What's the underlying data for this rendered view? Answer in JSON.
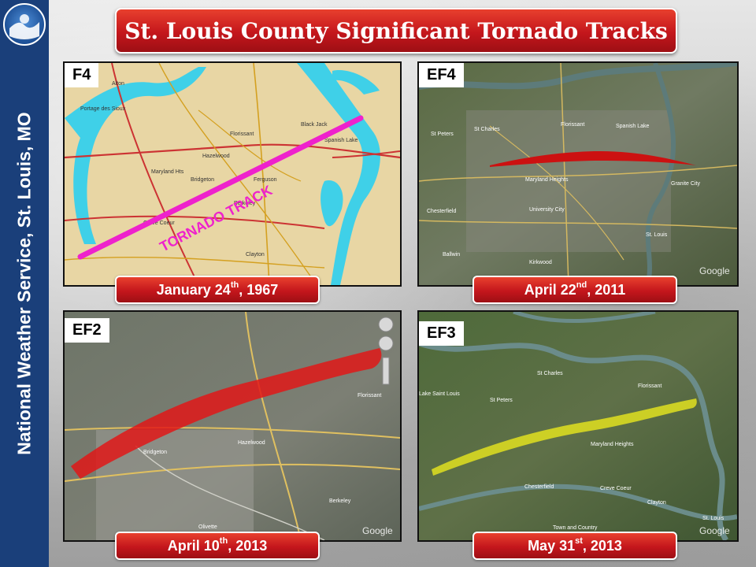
{
  "sidebar": {
    "title": "National Weather Service, St. Louis, MO",
    "logo_icon": "noaa-logo-icon",
    "color": "#1a3f7a"
  },
  "banner": {
    "title": "St. Louis County Significant Tornado Tracks"
  },
  "panels": [
    {
      "rating": "F4",
      "date_main": "January 24",
      "date_sup": "th",
      "date_year": ", 1967",
      "track_label": "TORNADO TRACK",
      "labels": [
        "Florissant",
        "Black Jack",
        "Hazelwood",
        "Ferguson",
        "Bridgeton",
        "Berkeley",
        "Maryland Heights",
        "Spanish Lake",
        "Alton",
        "Portage des Sioux",
        "Clayton",
        "Creve Coeur"
      ]
    },
    {
      "rating": "EF4",
      "date_main": "April 22",
      "date_sup": "nd",
      "date_year": ", 2011",
      "labels": [
        "St Charles",
        "St Peters",
        "Florissant",
        "Spanish Lake",
        "Maryland Heights",
        "Granite City",
        "University City",
        "Chesterfield",
        "St. Louis",
        "Ballwin",
        "Kirkwood"
      ],
      "watermark": "Google"
    },
    {
      "rating": "EF2",
      "date_main": "April 10",
      "date_sup": "th",
      "date_year": ", 2013",
      "labels": [
        "Florissant",
        "Hazelwood",
        "Bridgeton",
        "Berkeley",
        "Olivette"
      ],
      "watermark": "Google"
    },
    {
      "rating": "EF3",
      "date_main": "May 31",
      "date_sup": "st",
      "date_year": ", 2013",
      "labels": [
        "Lake Saint Louis",
        "St Peters",
        "St Charles",
        "Florissant",
        "Maryland Heights",
        "Chesterfield",
        "Creve Coeur",
        "Clayton",
        "Town and Country",
        "St. Louis"
      ],
      "watermark": "Google"
    }
  ],
  "colors": {
    "track_f4": "#ee22cc",
    "track_ef4": "#cc1111",
    "track_ef2": "#e01818",
    "track_ef3": "#e0e020",
    "river": "#3fd0e8",
    "map_land": "#e8d6a4"
  }
}
